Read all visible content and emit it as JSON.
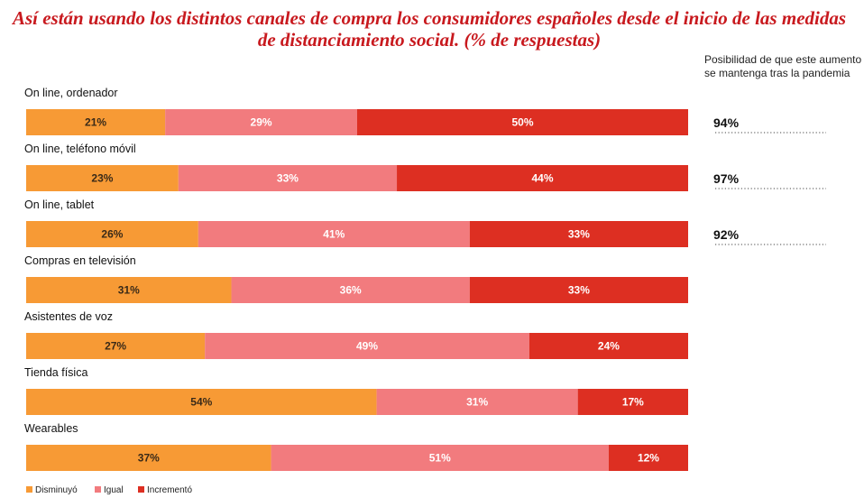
{
  "title": "Así están usando los distintos canales de compra los consumidores españoles desde el inicio de las medidas de distanciamiento social.  (% de respuestas)",
  "side_header": "Posibilidad de que este aumento se mantenga tras la pandemia",
  "colors": {
    "title": "#c8191e",
    "disminuyo": "#f79a35",
    "igual": "#f27b7e",
    "incremento": "#dd2f22"
  },
  "chart_data": {
    "type": "bar",
    "orientation": "horizontal",
    "stacked": true,
    "percent": true,
    "categories": [
      "On line, ordenador",
      "On line, teléfono móvil",
      "On line, tablet",
      "Compras en televisión",
      "Asistentes de voz",
      "Tienda física",
      "Wearables"
    ],
    "series": [
      {
        "name": "Disminuyó",
        "values": [
          21,
          23,
          26,
          31,
          27,
          54,
          37
        ],
        "labels": [
          "21%",
          "23%",
          "26%",
          "31%",
          "27%",
          "54%",
          "37%"
        ]
      },
      {
        "name": "Igual",
        "values": [
          29,
          33,
          41,
          36,
          49,
          31,
          51
        ],
        "labels": [
          "29%",
          "33%",
          "41%",
          "36%",
          "49%",
          "31%",
          "51%"
        ]
      },
      {
        "name": "Incrementó",
        "values": [
          50,
          44,
          33,
          33,
          24,
          17,
          12
        ],
        "labels": [
          "50%",
          "44%",
          "33%",
          "33%",
          "24%",
          "17%",
          "12%"
        ]
      }
    ],
    "side_values": [
      {
        "category": "On line, ordenador",
        "value": 94,
        "label": "94%"
      },
      {
        "category": "On line, teléfono móvil",
        "value": 97,
        "label": "97%"
      },
      {
        "category": "On line, tablet",
        "value": 92,
        "label": "92%"
      }
    ],
    "legend_position": "bottom-left",
    "grid": false
  }
}
